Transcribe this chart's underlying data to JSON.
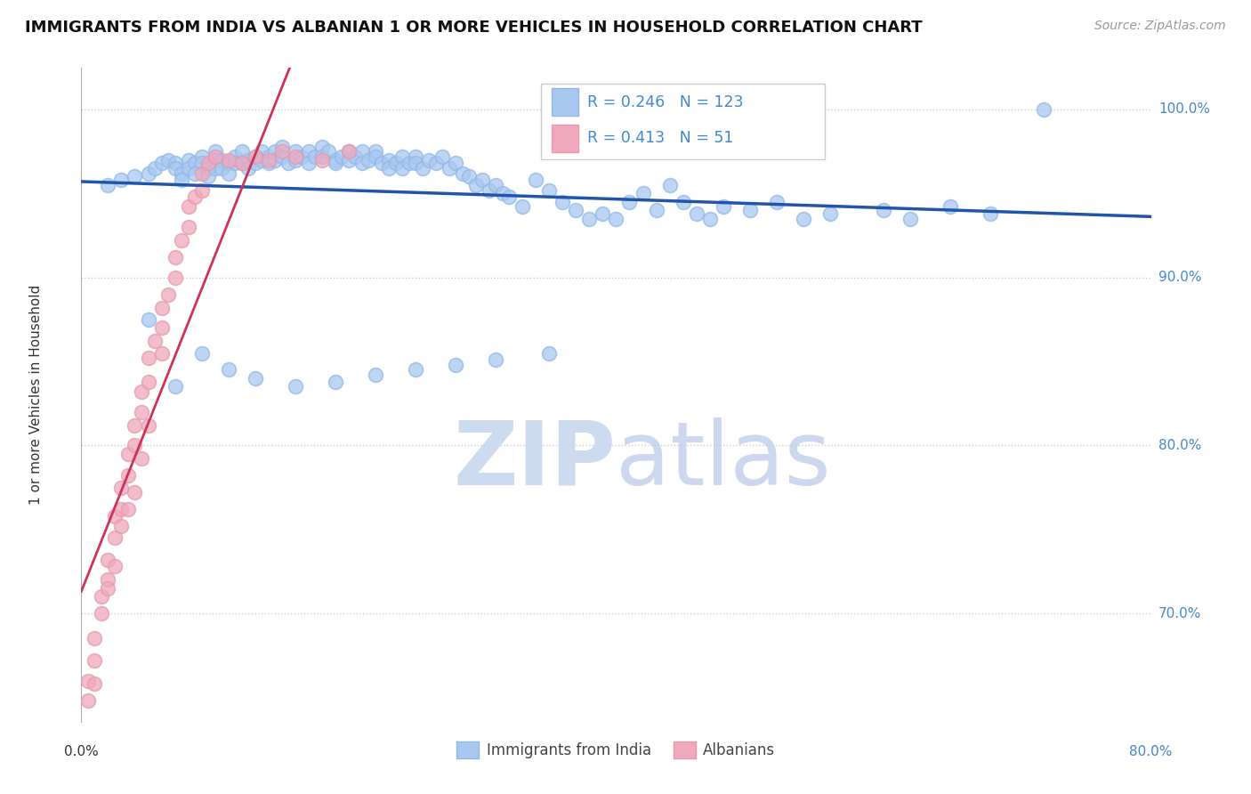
{
  "title": "IMMIGRANTS FROM INDIA VS ALBANIAN 1 OR MORE VEHICLES IN HOUSEHOLD CORRELATION CHART",
  "source": "Source: ZipAtlas.com",
  "ylabel": "1 or more Vehicles in Household",
  "ytick_labels": [
    "70.0%",
    "80.0%",
    "90.0%",
    "100.0%"
  ],
  "ytick_values": [
    0.7,
    0.8,
    0.9,
    1.0
  ],
  "xlim": [
    0.0,
    0.8
  ],
  "ylim": [
    0.635,
    1.025
  ],
  "blue_R": 0.246,
  "blue_N": 123,
  "pink_R": 0.413,
  "pink_N": 51,
  "legend_labels": [
    "Immigrants from India",
    "Albanians"
  ],
  "blue_color": "#A8C8F0",
  "pink_color": "#F0A8BC",
  "blue_edge_color": "#90B8E8",
  "pink_edge_color": "#E898B0",
  "blue_line_color": "#2255AA",
  "pink_line_color": "#CC3355",
  "watermark_zip_color": "#C8D8F0",
  "watermark_atlas_color": "#B8C8E8",
  "background_color": "#FFFFFF",
  "grid_color": "#CCCCCC",
  "title_fontsize": 13,
  "axis_label_color": "#333333",
  "right_tick_color": "#4488CC",
  "source_color": "#999999",
  "blue_scatter_x": [
    0.02,
    0.03,
    0.04,
    0.05,
    0.055,
    0.06,
    0.065,
    0.07,
    0.07,
    0.075,
    0.075,
    0.08,
    0.08,
    0.085,
    0.085,
    0.09,
    0.09,
    0.095,
    0.095,
    0.1,
    0.1,
    0.1,
    0.105,
    0.105,
    0.11,
    0.11,
    0.115,
    0.115,
    0.12,
    0.12,
    0.125,
    0.125,
    0.13,
    0.13,
    0.135,
    0.135,
    0.14,
    0.14,
    0.145,
    0.145,
    0.15,
    0.15,
    0.155,
    0.16,
    0.16,
    0.165,
    0.17,
    0.17,
    0.175,
    0.18,
    0.18,
    0.185,
    0.19,
    0.19,
    0.195,
    0.2,
    0.2,
    0.205,
    0.21,
    0.21,
    0.215,
    0.22,
    0.22,
    0.225,
    0.23,
    0.23,
    0.235,
    0.24,
    0.24,
    0.245,
    0.25,
    0.25,
    0.255,
    0.26,
    0.265,
    0.27,
    0.275,
    0.28,
    0.285,
    0.29,
    0.295,
    0.3,
    0.305,
    0.31,
    0.315,
    0.32,
    0.33,
    0.34,
    0.35,
    0.36,
    0.37,
    0.38,
    0.39,
    0.4,
    0.41,
    0.42,
    0.43,
    0.44,
    0.45,
    0.46,
    0.47,
    0.48,
    0.5,
    0.52,
    0.54,
    0.56,
    0.6,
    0.62,
    0.65,
    0.68,
    0.05,
    0.07,
    0.09,
    0.11,
    0.13,
    0.16,
    0.19,
    0.22,
    0.25,
    0.28,
    0.31,
    0.35,
    0.72
  ],
  "blue_scatter_y": [
    0.955,
    0.958,
    0.96,
    0.962,
    0.965,
    0.968,
    0.97,
    0.968,
    0.965,
    0.962,
    0.958,
    0.97,
    0.965,
    0.968,
    0.962,
    0.972,
    0.968,
    0.965,
    0.96,
    0.975,
    0.97,
    0.965,
    0.97,
    0.965,
    0.968,
    0.962,
    0.972,
    0.968,
    0.975,
    0.968,
    0.97,
    0.965,
    0.972,
    0.968,
    0.975,
    0.97,
    0.972,
    0.968,
    0.975,
    0.97,
    0.978,
    0.972,
    0.968,
    0.975,
    0.97,
    0.972,
    0.975,
    0.968,
    0.972,
    0.978,
    0.972,
    0.975,
    0.97,
    0.968,
    0.972,
    0.975,
    0.97,
    0.972,
    0.975,
    0.968,
    0.97,
    0.975,
    0.972,
    0.968,
    0.97,
    0.965,
    0.968,
    0.972,
    0.965,
    0.968,
    0.972,
    0.968,
    0.965,
    0.97,
    0.968,
    0.972,
    0.965,
    0.968,
    0.962,
    0.96,
    0.955,
    0.958,
    0.952,
    0.955,
    0.95,
    0.948,
    0.942,
    0.958,
    0.952,
    0.945,
    0.94,
    0.935,
    0.938,
    0.935,
    0.945,
    0.95,
    0.94,
    0.955,
    0.945,
    0.938,
    0.935,
    0.942,
    0.94,
    0.945,
    0.935,
    0.938,
    0.94,
    0.935,
    0.942,
    0.938,
    0.875,
    0.835,
    0.855,
    0.845,
    0.84,
    0.835,
    0.838,
    0.842,
    0.845,
    0.848,
    0.851,
    0.855,
    1.0
  ],
  "pink_scatter_x": [
    0.005,
    0.01,
    0.01,
    0.015,
    0.02,
    0.02,
    0.025,
    0.025,
    0.03,
    0.03,
    0.035,
    0.035,
    0.04,
    0.04,
    0.045,
    0.045,
    0.05,
    0.05,
    0.055,
    0.06,
    0.06,
    0.065,
    0.07,
    0.07,
    0.075,
    0.08,
    0.08,
    0.085,
    0.09,
    0.09,
    0.095,
    0.1,
    0.11,
    0.12,
    0.13,
    0.14,
    0.15,
    0.16,
    0.18,
    0.2,
    0.005,
    0.01,
    0.015,
    0.02,
    0.025,
    0.03,
    0.035,
    0.04,
    0.045,
    0.05,
    0.06
  ],
  "pink_scatter_y": [
    0.66,
    0.672,
    0.685,
    0.71,
    0.72,
    0.732,
    0.745,
    0.758,
    0.762,
    0.775,
    0.782,
    0.795,
    0.8,
    0.812,
    0.82,
    0.832,
    0.838,
    0.852,
    0.862,
    0.87,
    0.882,
    0.89,
    0.9,
    0.912,
    0.922,
    0.93,
    0.942,
    0.948,
    0.952,
    0.962,
    0.968,
    0.972,
    0.97,
    0.968,
    0.972,
    0.97,
    0.975,
    0.972,
    0.97,
    0.975,
    0.648,
    0.658,
    0.7,
    0.715,
    0.728,
    0.752,
    0.762,
    0.772,
    0.792,
    0.812,
    0.855
  ]
}
